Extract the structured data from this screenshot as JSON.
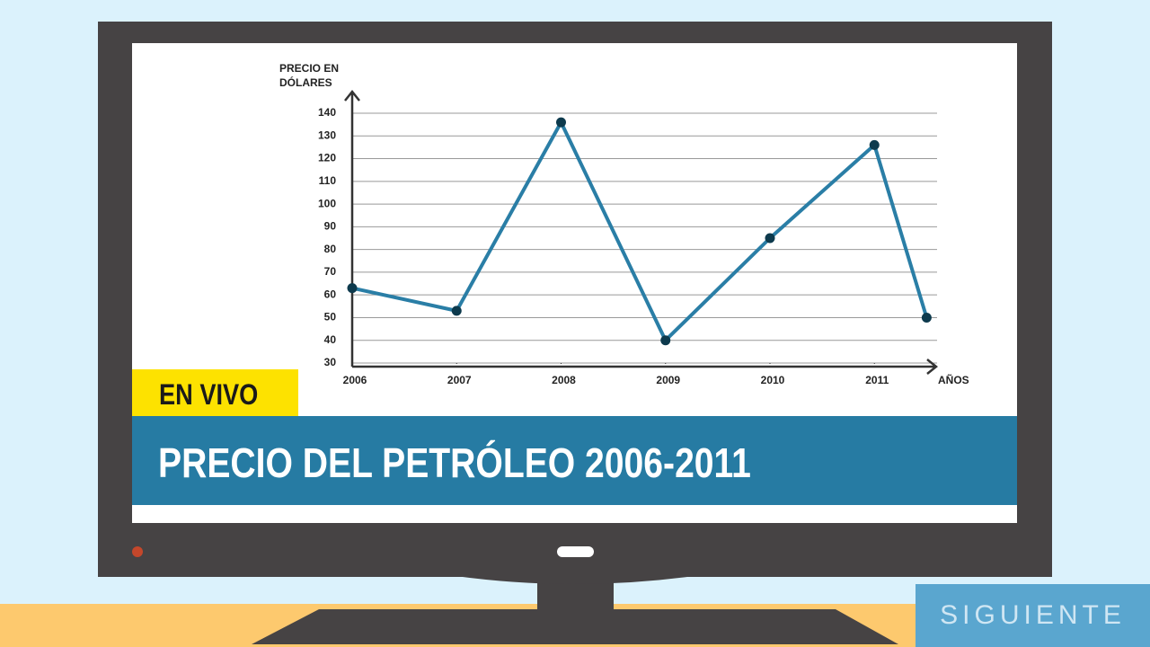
{
  "chart_data": {
    "type": "line",
    "ylabel": "PRECIO EN DÓLARES",
    "xlabel": "AÑOS",
    "x": [
      2006,
      2007,
      2008,
      2009,
      2010,
      2011,
      2011.5
    ],
    "series": [
      {
        "name": "Precio",
        "color": "#2a7ea6",
        "values": [
          63,
          53,
          136,
          40,
          85,
          126,
          50
        ]
      }
    ],
    "marker_color": "#0d3a4d",
    "xlim": [
      2006,
      2011.6
    ],
    "xticks": [
      2006,
      2007,
      2008,
      2009,
      2010,
      2011
    ],
    "ylim": [
      30,
      140
    ],
    "yticks": [
      30,
      40,
      50,
      60,
      70,
      80,
      90,
      100,
      110,
      120,
      130,
      140
    ],
    "grid": true
  },
  "live_badge": "EN VIVO",
  "banner": "PRECIO DEL PETRÓLEO 2006-2011",
  "button": "SIGUIENTE"
}
